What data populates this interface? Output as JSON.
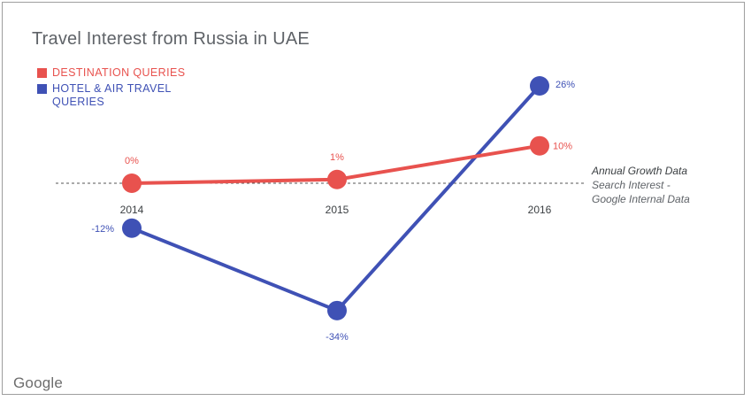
{
  "chart_data": {
    "type": "line",
    "title": "Travel Interest from Russia in UAE",
    "categories": [
      "2014",
      "2015",
      "2016"
    ],
    "series": [
      {
        "name": "DESTINATION QUERIES",
        "color": "#e8524e",
        "values": [
          0,
          1,
          10
        ],
        "labels": [
          "0%",
          "1%",
          "10%"
        ]
      },
      {
        "name": "HOTEL & AIR TRAVEL QUERIES",
        "color": "#3f51b5",
        "values": [
          -12,
          -34,
          26
        ],
        "labels": [
          "-12%",
          "-34%",
          "26%"
        ]
      }
    ],
    "ylim": [
      -36,
      28
    ],
    "zero_line": "dashed",
    "legend_position": "top-left",
    "annotation": [
      "Annual Growth Data",
      "Search Interest -",
      "Google Internal Data"
    ]
  },
  "brand": "Google"
}
